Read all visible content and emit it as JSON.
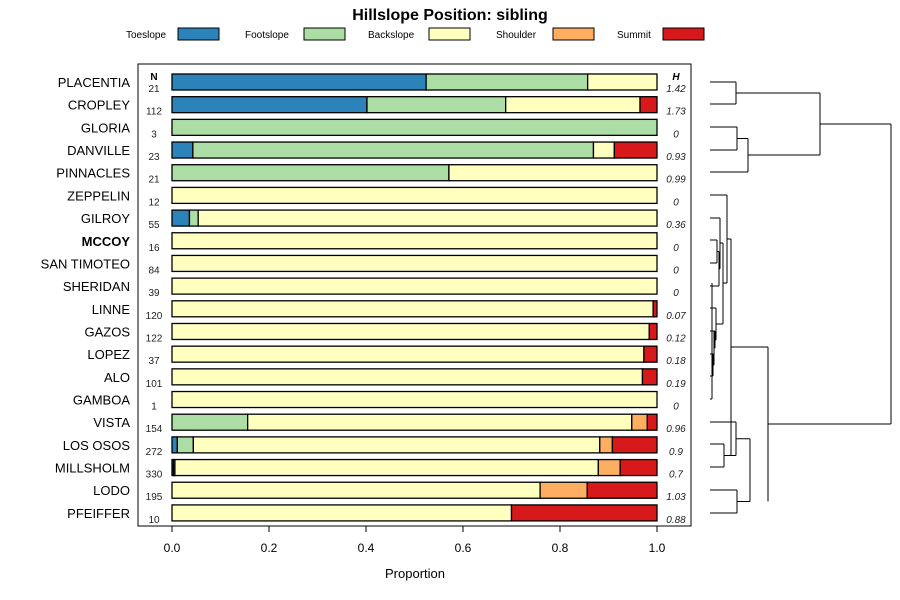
{
  "chart_data": {
    "type": "bar",
    "title": "Hillslope Position: sibling",
    "xlabel": "Proportion",
    "ylabel": "",
    "xlim": [
      0,
      1
    ],
    "xticks": [
      "0.0",
      "0.2",
      "0.4",
      "0.6",
      "0.8",
      "1.0"
    ],
    "xtick_values": [
      0,
      0.2,
      0.4,
      0.6,
      0.8,
      1.0
    ],
    "n_header": "N",
    "h_header": "H",
    "highlight": "MCCOY",
    "legend": [
      {
        "name": "Toeslope",
        "color": "#2b83ba"
      },
      {
        "name": "Footslope",
        "color": "#abdda4"
      },
      {
        "name": "Backslope",
        "color": "#ffffbf"
      },
      {
        "name": "Shoulder",
        "color": "#fdae61"
      },
      {
        "name": "Summit",
        "color": "#d7191c"
      }
    ],
    "rows": [
      {
        "name": "PLACENTIA",
        "n": "21",
        "h": "1.42",
        "values": [
          0.524,
          0.333,
          0.143,
          0,
          0
        ]
      },
      {
        "name": "CROPLEY",
        "n": "112",
        "h": "1.73",
        "values": [
          0.402,
          0.286,
          0.277,
          0,
          0.035
        ]
      },
      {
        "name": "GLORIA",
        "n": "3",
        "h": "0",
        "values": [
          0,
          1.0,
          0,
          0,
          0
        ]
      },
      {
        "name": "DANVILLE",
        "n": "23",
        "h": "0.93",
        "values": [
          0.043,
          0.826,
          0.043,
          0,
          0.088
        ]
      },
      {
        "name": "PINNACLES",
        "n": "21",
        "h": "0.99",
        "values": [
          0,
          0.571,
          0.429,
          0,
          0
        ]
      },
      {
        "name": "ZEPPELIN",
        "n": "12",
        "h": "0",
        "values": [
          0,
          0,
          1.0,
          0,
          0
        ]
      },
      {
        "name": "GILROY",
        "n": "55",
        "h": "0.36",
        "values": [
          0.036,
          0.018,
          0.946,
          0,
          0
        ]
      },
      {
        "name": "MCCOY",
        "n": "16",
        "h": "0",
        "values": [
          0,
          0,
          1.0,
          0,
          0
        ]
      },
      {
        "name": "SAN TIMOTEO",
        "n": "84",
        "h": "0",
        "values": [
          0,
          0,
          1.0,
          0,
          0
        ]
      },
      {
        "name": "SHERIDAN",
        "n": "39",
        "h": "0",
        "values": [
          0,
          0,
          1.0,
          0,
          0
        ]
      },
      {
        "name": "LINNE",
        "n": "120",
        "h": "0.07",
        "values": [
          0,
          0,
          0.992,
          0,
          0.008
        ]
      },
      {
        "name": "GAZOS",
        "n": "122",
        "h": "0.12",
        "values": [
          0,
          0,
          0.984,
          0,
          0.016
        ]
      },
      {
        "name": "LOPEZ",
        "n": "37",
        "h": "0.18",
        "values": [
          0,
          0,
          0.973,
          0,
          0.027
        ]
      },
      {
        "name": "ALO",
        "n": "101",
        "h": "0.19",
        "values": [
          0,
          0,
          0.97,
          0,
          0.03
        ]
      },
      {
        "name": "GAMBOA",
        "n": "1",
        "h": "0",
        "values": [
          0,
          0,
          1.0,
          0,
          0
        ]
      },
      {
        "name": "VISTA",
        "n": "154",
        "h": "0.96",
        "values": [
          0,
          0.156,
          0.792,
          0.032,
          0.02
        ]
      },
      {
        "name": "LOS OSOS",
        "n": "272",
        "h": "0.9",
        "values": [
          0.011,
          0.033,
          0.838,
          0.026,
          0.092
        ]
      },
      {
        "name": "MILLSHOLM",
        "n": "330",
        "h": "0.7",
        "values": [
          0.003,
          0.003,
          0.873,
          0.045,
          0.076
        ]
      },
      {
        "name": "LODO",
        "n": "195",
        "h": "1.03",
        "values": [
          0,
          0,
          0.759,
          0.097,
          0.144
        ]
      },
      {
        "name": "PFEIFFER",
        "n": "10",
        "h": "0.88",
        "values": [
          0,
          0,
          0.7,
          0,
          0.3
        ]
      }
    ]
  }
}
